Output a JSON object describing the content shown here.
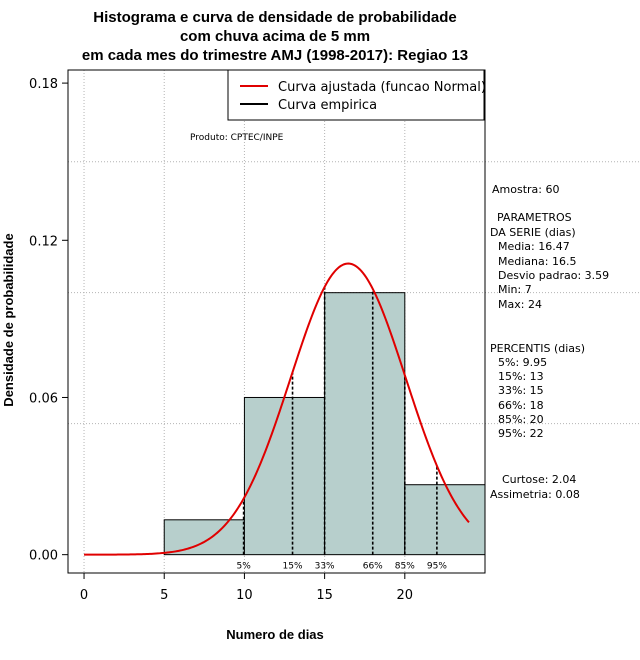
{
  "chart_data": {
    "type": "bar",
    "title": [
      "Histograma e curva de densidade de probabilidade",
      "com chuva acima de 5 mm",
      "em cada mes do trimestre AMJ (1998-2017): Regiao 13"
    ],
    "xlabel": "Numero de dias",
    "ylabel": "Densidade de probabilidade",
    "xlim": [
      -1,
      25
    ],
    "ylim": [
      -0.007,
      0.185
    ],
    "x_ticks": [
      0,
      5,
      10,
      15,
      20
    ],
    "y_ticks": [
      0.0,
      0.06,
      0.12,
      0.18
    ],
    "y_tick_labels": [
      "0.00",
      "0.06",
      "0.12",
      "0.18"
    ],
    "grid": true,
    "grid_v": [
      0,
      5,
      10,
      15,
      20
    ],
    "grid_h": [
      0.05,
      0.1,
      0.15
    ],
    "bins": [
      {
        "start": 5,
        "end": 10,
        "density": 0.0133
      },
      {
        "start": 10,
        "end": 15,
        "density": 0.06
      },
      {
        "start": 15,
        "end": 20,
        "density": 0.1
      },
      {
        "start": 20,
        "end": 25,
        "density": 0.0267
      }
    ],
    "bar_color": "#b7cfcc",
    "normal_fit": {
      "mean": 16.47,
      "sd": 3.59,
      "x_from": 0,
      "x_to": 24,
      "color": "#e00000"
    },
    "percentile_lines": [
      {
        "label": "5%",
        "x": 9.95
      },
      {
        "label": "15%",
        "x": 13
      },
      {
        "label": "33%",
        "x": 15
      },
      {
        "label": "66%",
        "x": 18
      },
      {
        "label": "85%",
        "x": 20
      },
      {
        "label": "95%",
        "x": 22
      }
    ],
    "legend": [
      {
        "label": "Curva ajustada (funcao Normal)",
        "color": "#e00000"
      },
      {
        "label": "Curva empirica",
        "color": "#000000"
      }
    ],
    "legend_position": "top-right",
    "annotation": "Produto: CPTEC/INPE"
  },
  "stats_panel": {
    "lines": [
      "Amostra: 60",
      "PARAMETROS",
      "DA SERIE (dias)",
      "Media: 16.47",
      "Mediana: 16.5",
      "Desvio padrao: 3.59",
      "Min: 7",
      "Max: 24",
      "PERCENTIS (dias)",
      "5%: 9.95",
      "15%: 13",
      "33%: 15",
      "66%: 18",
      "85%: 20",
      "95%: 22",
      "Curtose: 2.04",
      "Assimetria: 0.08"
    ]
  }
}
